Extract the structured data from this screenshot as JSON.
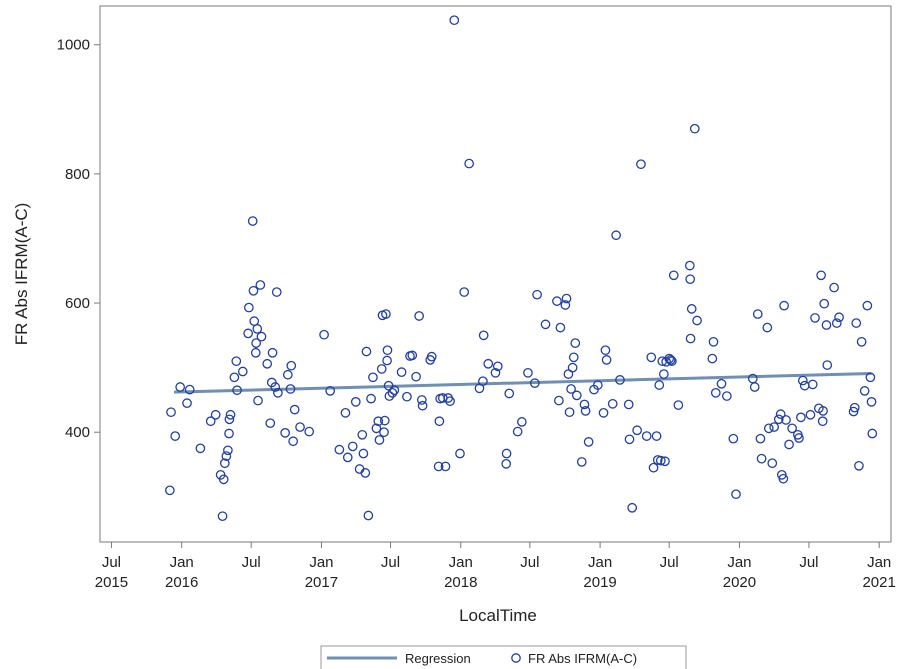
{
  "chart_data": {
    "type": "scatter",
    "xlabel": "LocalTime",
    "ylabel": "FR Abs IFRM(A-C)",
    "xlim": [
      "2015-06-01",
      "2021-02-01"
    ],
    "ylim": [
      230,
      1060
    ],
    "grid": false,
    "legend_position": "bottom",
    "colors": {
      "points": "#1f3ea8",
      "regression": "#6f8fb3",
      "frame": "#7a7a7a",
      "text": "#222222"
    },
    "y_ticks": [
      {
        "value": 400,
        "label": "400"
      },
      {
        "value": 600,
        "label": "600"
      },
      {
        "value": 800,
        "label": "800"
      },
      {
        "value": 1000,
        "label": "1000"
      }
    ],
    "x_ticks": [
      {
        "value": "2015-07-01",
        "line1": "Jul",
        "line2": "2015"
      },
      {
        "value": "2016-01-01",
        "line1": "Jan",
        "line2": "2016"
      },
      {
        "value": "2016-07-01",
        "line1": "Jul",
        "line2": ""
      },
      {
        "value": "2017-01-01",
        "line1": "Jan",
        "line2": "2017"
      },
      {
        "value": "2017-07-01",
        "line1": "Jul",
        "line2": ""
      },
      {
        "value": "2018-01-01",
        "line1": "Jan",
        "line2": "2018"
      },
      {
        "value": "2018-07-01",
        "line1": "Jul",
        "line2": ""
      },
      {
        "value": "2019-01-01",
        "line1": "Jan",
        "line2": "2019"
      },
      {
        "value": "2019-07-01",
        "line1": "Jul",
        "line2": ""
      },
      {
        "value": "2020-01-01",
        "line1": "Jan",
        "line2": "2020"
      },
      {
        "value": "2020-07-01",
        "line1": "Jul",
        "line2": ""
      },
      {
        "value": "2021-01-01",
        "line1": "Jan",
        "line2": "2021"
      }
    ],
    "series": [
      {
        "name": "Regression",
        "type": "line",
        "points": [
          {
            "x": "2015-12-12",
            "y": 462
          },
          {
            "x": "2020-12-12",
            "y": 491
          }
        ]
      },
      {
        "name": "FR Abs IFRM(A-C)",
        "type": "scatter",
        "points": [
          {
            "x": "2015-12-01",
            "y": 310
          },
          {
            "x": "2015-12-04",
            "y": 431
          },
          {
            "x": "2015-12-15",
            "y": 394
          },
          {
            "x": "2015-12-28",
            "y": 470
          },
          {
            "x": "2016-01-15",
            "y": 445
          },
          {
            "x": "2016-01-22",
            "y": 466
          },
          {
            "x": "2016-02-19",
            "y": 375
          },
          {
            "x": "2016-03-17",
            "y": 417
          },
          {
            "x": "2016-03-30",
            "y": 427
          },
          {
            "x": "2016-04-12",
            "y": 334
          },
          {
            "x": "2016-04-17",
            "y": 270
          },
          {
            "x": "2016-04-20",
            "y": 327
          },
          {
            "x": "2016-04-23",
            "y": 352
          },
          {
            "x": "2016-04-27",
            "y": 363
          },
          {
            "x": "2016-05-01",
            "y": 372
          },
          {
            "x": "2016-05-04",
            "y": 398
          },
          {
            "x": "2016-05-05",
            "y": 420
          },
          {
            "x": "2016-05-08",
            "y": 427
          },
          {
            "x": "2016-05-18",
            "y": 485
          },
          {
            "x": "2016-05-23",
            "y": 510
          },
          {
            "x": "2016-05-25",
            "y": 465
          },
          {
            "x": "2016-06-09",
            "y": 494
          },
          {
            "x": "2016-06-23",
            "y": 553
          },
          {
            "x": "2016-06-25",
            "y": 593
          },
          {
            "x": "2016-07-05",
            "y": 727
          },
          {
            "x": "2016-07-07",
            "y": 619
          },
          {
            "x": "2016-07-09",
            "y": 572
          },
          {
            "x": "2016-07-13",
            "y": 523
          },
          {
            "x": "2016-07-14",
            "y": 538
          },
          {
            "x": "2016-07-17",
            "y": 560
          },
          {
            "x": "2016-07-19",
            "y": 449
          },
          {
            "x": "2016-07-25",
            "y": 628
          },
          {
            "x": "2016-07-28",
            "y": 548
          },
          {
            "x": "2016-08-12",
            "y": 506
          },
          {
            "x": "2016-08-20",
            "y": 414
          },
          {
            "x": "2016-08-24",
            "y": 477
          },
          {
            "x": "2016-08-26",
            "y": 523
          },
          {
            "x": "2016-09-02",
            "y": 470
          },
          {
            "x": "2016-09-06",
            "y": 617
          },
          {
            "x": "2016-09-09",
            "y": 461
          },
          {
            "x": "2016-09-28",
            "y": 399
          },
          {
            "x": "2016-10-05",
            "y": 489
          },
          {
            "x": "2016-10-12",
            "y": 467
          },
          {
            "x": "2016-10-14",
            "y": 503
          },
          {
            "x": "2016-10-19",
            "y": 386
          },
          {
            "x": "2016-10-23",
            "y": 435
          },
          {
            "x": "2016-11-06",
            "y": 408
          },
          {
            "x": "2016-11-30",
            "y": 401
          },
          {
            "x": "2017-01-08",
            "y": 551
          },
          {
            "x": "2017-01-24",
            "y": 464
          },
          {
            "x": "2017-02-17",
            "y": 373
          },
          {
            "x": "2017-03-05",
            "y": 430
          },
          {
            "x": "2017-03-11",
            "y": 361
          },
          {
            "x": "2017-03-24",
            "y": 378
          },
          {
            "x": "2017-04-01",
            "y": 447
          },
          {
            "x": "2017-04-11",
            "y": 343
          },
          {
            "x": "2017-04-18",
            "y": 396
          },
          {
            "x": "2017-04-21",
            "y": 367
          },
          {
            "x": "2017-04-26",
            "y": 337
          },
          {
            "x": "2017-04-29",
            "y": 525
          },
          {
            "x": "2017-05-04",
            "y": 271
          },
          {
            "x": "2017-05-11",
            "y": 452
          },
          {
            "x": "2017-05-16",
            "y": 485
          },
          {
            "x": "2017-05-25",
            "y": 406
          },
          {
            "x": "2017-05-30",
            "y": 417
          },
          {
            "x": "2017-06-02",
            "y": 388
          },
          {
            "x": "2017-06-08",
            "y": 498
          },
          {
            "x": "2017-06-10",
            "y": 581
          },
          {
            "x": "2017-06-14",
            "y": 400
          },
          {
            "x": "2017-06-16",
            "y": 418
          },
          {
            "x": "2017-06-19",
            "y": 583
          },
          {
            "x": "2017-06-22",
            "y": 511
          },
          {
            "x": "2017-06-23",
            "y": 527
          },
          {
            "x": "2017-06-26",
            "y": 472
          },
          {
            "x": "2017-06-28",
            "y": 456
          },
          {
            "x": "2017-07-06",
            "y": 461
          },
          {
            "x": "2017-07-11",
            "y": 465
          },
          {
            "x": "2017-07-30",
            "y": 493
          },
          {
            "x": "2017-08-13",
            "y": 455
          },
          {
            "x": "2017-08-21",
            "y": 518
          },
          {
            "x": "2017-08-27",
            "y": 519
          },
          {
            "x": "2017-09-06",
            "y": 486
          },
          {
            "x": "2017-09-14",
            "y": 580
          },
          {
            "x": "2017-09-21",
            "y": 450
          },
          {
            "x": "2017-09-23",
            "y": 441
          },
          {
            "x": "2017-10-13",
            "y": 512
          },
          {
            "x": "2017-10-17",
            "y": 517
          },
          {
            "x": "2017-11-04",
            "y": 347
          },
          {
            "x": "2017-11-06",
            "y": 417
          },
          {
            "x": "2017-11-08",
            "y": 452
          },
          {
            "x": "2017-11-15",
            "y": 453
          },
          {
            "x": "2017-11-22",
            "y": 347
          },
          {
            "x": "2017-11-29",
            "y": 453
          },
          {
            "x": "2017-12-04",
            "y": 448
          },
          {
            "x": "2017-12-15",
            "y": 1038
          },
          {
            "x": "2017-12-30",
            "y": 367
          },
          {
            "x": "2018-01-10",
            "y": 617
          },
          {
            "x": "2018-01-23",
            "y": 816
          },
          {
            "x": "2018-02-19",
            "y": 468
          },
          {
            "x": "2018-02-28",
            "y": 479
          },
          {
            "x": "2018-03-02",
            "y": 550
          },
          {
            "x": "2018-03-14",
            "y": 506
          },
          {
            "x": "2018-04-02",
            "y": 492
          },
          {
            "x": "2018-04-08",
            "y": 502
          },
          {
            "x": "2018-04-30",
            "y": 351
          },
          {
            "x": "2018-05-01",
            "y": 367
          },
          {
            "x": "2018-05-08",
            "y": 460
          },
          {
            "x": "2018-05-30",
            "y": 401
          },
          {
            "x": "2018-06-10",
            "y": 416
          },
          {
            "x": "2018-06-26",
            "y": 492
          },
          {
            "x": "2018-07-14",
            "y": 476
          },
          {
            "x": "2018-07-20",
            "y": 613
          },
          {
            "x": "2018-08-11",
            "y": 567
          },
          {
            "x": "2018-09-10",
            "y": 603
          },
          {
            "x": "2018-09-15",
            "y": 449
          },
          {
            "x": "2018-09-19",
            "y": 562
          },
          {
            "x": "2018-10-02",
            "y": 597
          },
          {
            "x": "2018-10-05",
            "y": 607
          },
          {
            "x": "2018-10-10",
            "y": 490
          },
          {
            "x": "2018-10-13",
            "y": 431
          },
          {
            "x": "2018-10-17",
            "y": 467
          },
          {
            "x": "2018-10-21",
            "y": 500
          },
          {
            "x": "2018-10-24",
            "y": 516
          },
          {
            "x": "2018-10-28",
            "y": 538
          },
          {
            "x": "2018-11-01",
            "y": 457
          },
          {
            "x": "2018-11-14",
            "y": 354
          },
          {
            "x": "2018-11-21",
            "y": 443
          },
          {
            "x": "2018-11-24",
            "y": 433
          },
          {
            "x": "2018-12-02",
            "y": 385
          },
          {
            "x": "2018-12-16",
            "y": 466
          },
          {
            "x": "2018-12-26",
            "y": 473
          },
          {
            "x": "2019-01-10",
            "y": 430
          },
          {
            "x": "2019-01-15",
            "y": 527
          },
          {
            "x": "2019-01-18",
            "y": 512
          },
          {
            "x": "2019-02-03",
            "y": 444
          },
          {
            "x": "2019-02-12",
            "y": 705
          },
          {
            "x": "2019-02-22",
            "y": 481
          },
          {
            "x": "2019-03-17",
            "y": 443
          },
          {
            "x": "2019-03-19",
            "y": 389
          },
          {
            "x": "2019-03-26",
            "y": 283
          },
          {
            "x": "2019-04-08",
            "y": 403
          },
          {
            "x": "2019-04-18",
            "y": 815
          },
          {
            "x": "2019-05-03",
            "y": 394
          },
          {
            "x": "2019-05-15",
            "y": 516
          },
          {
            "x": "2019-05-21",
            "y": 345
          },
          {
            "x": "2019-05-29",
            "y": 394
          },
          {
            "x": "2019-06-01",
            "y": 357
          },
          {
            "x": "2019-06-05",
            "y": 473
          },
          {
            "x": "2019-06-09",
            "y": 356
          },
          {
            "x": "2019-06-13",
            "y": 510
          },
          {
            "x": "2019-06-17",
            "y": 490
          },
          {
            "x": "2019-06-20",
            "y": 355
          },
          {
            "x": "2019-06-23",
            "y": 509
          },
          {
            "x": "2019-07-01",
            "y": 514
          },
          {
            "x": "2019-07-05",
            "y": 512
          },
          {
            "x": "2019-07-08",
            "y": 510
          },
          {
            "x": "2019-07-13",
            "y": 643
          },
          {
            "x": "2019-07-25",
            "y": 442
          },
          {
            "x": "2019-08-24",
            "y": 658
          },
          {
            "x": "2019-08-25",
            "y": 637
          },
          {
            "x": "2019-08-26",
            "y": 545
          },
          {
            "x": "2019-08-29",
            "y": 591
          },
          {
            "x": "2019-09-06",
            "y": 870
          },
          {
            "x": "2019-09-12",
            "y": 573
          },
          {
            "x": "2019-10-22",
            "y": 514
          },
          {
            "x": "2019-10-25",
            "y": 540
          },
          {
            "x": "2019-10-31",
            "y": 461
          },
          {
            "x": "2019-11-15",
            "y": 475
          },
          {
            "x": "2019-11-29",
            "y": 456
          },
          {
            "x": "2019-12-16",
            "y": 390
          },
          {
            "x": "2019-12-23",
            "y": 304
          },
          {
            "x": "2020-02-05",
            "y": 483
          },
          {
            "x": "2020-02-10",
            "y": 470
          },
          {
            "x": "2020-02-18",
            "y": 583
          },
          {
            "x": "2020-02-25",
            "y": 390
          },
          {
            "x": "2020-02-28",
            "y": 359
          },
          {
            "x": "2020-03-14",
            "y": 562
          },
          {
            "x": "2020-03-18",
            "y": 406
          },
          {
            "x": "2020-03-27",
            "y": 352
          },
          {
            "x": "2020-04-01",
            "y": 408
          },
          {
            "x": "2020-04-13",
            "y": 420
          },
          {
            "x": "2020-04-18",
            "y": 428
          },
          {
            "x": "2020-04-21",
            "y": 334
          },
          {
            "x": "2020-04-25",
            "y": 328
          },
          {
            "x": "2020-04-27",
            "y": 596
          },
          {
            "x": "2020-05-02",
            "y": 419
          },
          {
            "x": "2020-05-10",
            "y": 381
          },
          {
            "x": "2020-05-18",
            "y": 406
          },
          {
            "x": "2020-06-02",
            "y": 396
          },
          {
            "x": "2020-06-05",
            "y": 391
          },
          {
            "x": "2020-06-10",
            "y": 423
          },
          {
            "x": "2020-06-15",
            "y": 480
          },
          {
            "x": "2020-06-20",
            "y": 472
          },
          {
            "x": "2020-07-05",
            "y": 427
          },
          {
            "x": "2020-07-11",
            "y": 474
          },
          {
            "x": "2020-07-17",
            "y": 577
          },
          {
            "x": "2020-07-27",
            "y": 437
          },
          {
            "x": "2020-08-02",
            "y": 643
          },
          {
            "x": "2020-08-06",
            "y": 417
          },
          {
            "x": "2020-08-07",
            "y": 433
          },
          {
            "x": "2020-08-10",
            "y": 599
          },
          {
            "x": "2020-08-16",
            "y": 566
          },
          {
            "x": "2020-08-18",
            "y": 504
          },
          {
            "x": "2020-09-05",
            "y": 624
          },
          {
            "x": "2020-09-12",
            "y": 569
          },
          {
            "x": "2020-09-18",
            "y": 578
          },
          {
            "x": "2020-10-26",
            "y": 432
          },
          {
            "x": "2020-10-29",
            "y": 438
          },
          {
            "x": "2020-11-02",
            "y": 569
          },
          {
            "x": "2020-11-09",
            "y": 348
          },
          {
            "x": "2020-11-16",
            "y": 540
          },
          {
            "x": "2020-11-24",
            "y": 464
          },
          {
            "x": "2020-12-01",
            "y": 596
          },
          {
            "x": "2020-12-09",
            "y": 485
          },
          {
            "x": "2020-12-12",
            "y": 447
          },
          {
            "x": "2020-12-14",
            "y": 398
          }
        ]
      }
    ]
  }
}
